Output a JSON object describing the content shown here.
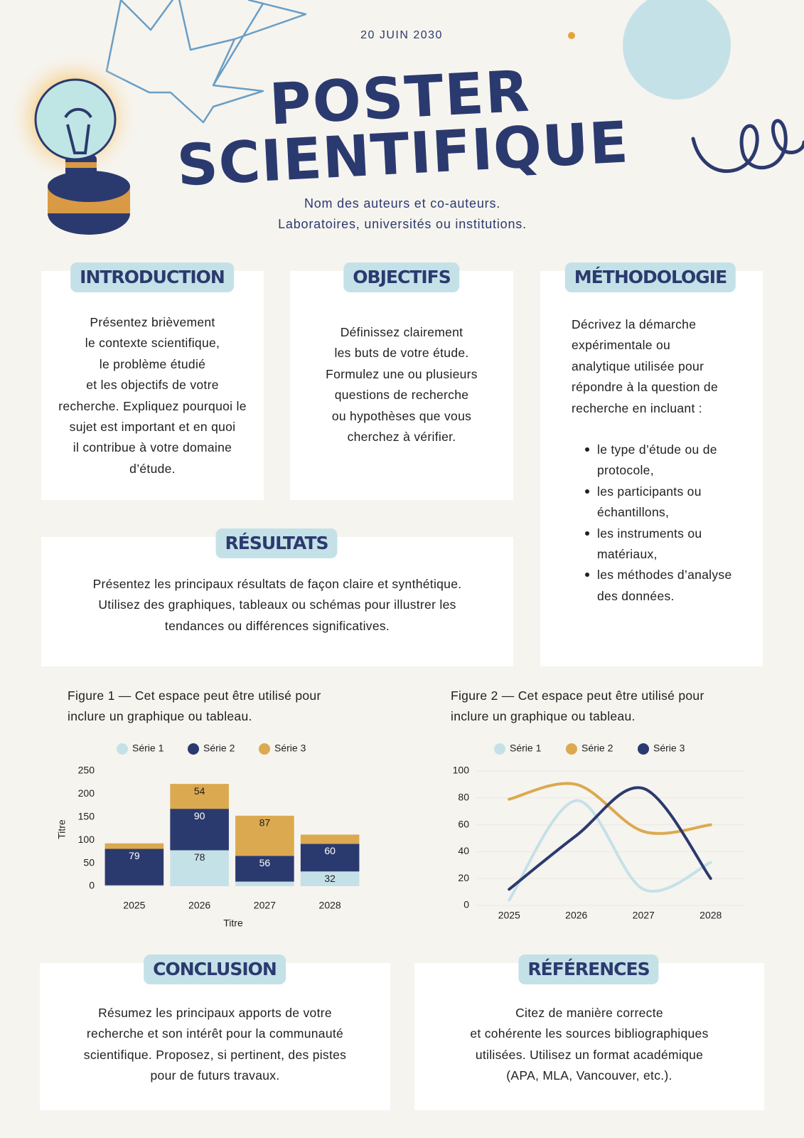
{
  "header": {
    "date": "20 JUIN 2030",
    "title_lines": [
      "POSTER",
      "SCIENTIFIQUE"
    ],
    "authors": [
      "Nom des auteurs et co-auteurs.",
      "Laboratoires, universités ou institutions."
    ]
  },
  "sections": [
    {
      "heading": "INTRODUCTION",
      "lines": [
        "Présentez brièvement",
        "le contexte scientifique,",
        "le problème étudié",
        "et les objectifs de votre",
        "recherche. Expliquez pourquoi le",
        "sujet est important et en quoi",
        "il contribue à votre domaine",
        "d’étude."
      ]
    },
    {
      "heading": "OBJECTIFS",
      "lines": [
        "Définissez clairement",
        "les buts de votre étude.",
        "Formulez une ou plusieurs",
        "questions de recherche",
        "ou hypothèses que vous",
        "cherchez à vérifier."
      ]
    },
    {
      "heading": "MÉTHODOLOGIE",
      "lines": [
        "Décrivez la démarche",
        "expérimentale ou",
        "analytique utilisée pour",
        "répondre à la question de",
        "recherche en incluant :"
      ],
      "bullets": [
        [
          "le type d’étude ou de",
          "protocole,"
        ],
        [
          "les participants ou",
          "échantillons,"
        ],
        [
          "les instruments ou",
          "matériaux,"
        ],
        [
          "les méthodes d’analyse",
          "des données."
        ]
      ]
    },
    {
      "heading": "RÉSULTATS",
      "lines": [
        "Présentez les principaux résultats de façon claire et synthétique.",
        "Utilisez des graphiques, tableaux ou schémas pour illustrer les",
        "tendances ou différences significatives."
      ]
    },
    {
      "heading": "CONCLUSION",
      "lines": [
        "Résumez les principaux apports de votre",
        "recherche et son intérêt pour la communauté",
        "scientifique. Proposez, si pertinent, des pistes",
        "pour de futurs travaux."
      ]
    },
    {
      "heading": "RÉFÉRENCES",
      "lines": [
        "Citez de manière correcte",
        "et cohérente les sources bibliographiques",
        "utilisées. Utilisez un format académique",
        "(APA, MLA, Vancouver, etc.)."
      ]
    }
  ],
  "figures": [
    {
      "caption_lines": [
        "Figure 1 — Cet espace peut être utilisé pour",
        "inclure un graphique ou tableau."
      ],
      "chart": {
        "type": "bar",
        "stacked": true,
        "data_labels": true,
        "grid": false,
        "categories": [
          "2025",
          "2026",
          "2027",
          "2028"
        ],
        "series": [
          {
            "name": "Série 1",
            "color": "#c5e1e8",
            "values": [
              2,
              78,
              10,
              32
            ]
          },
          {
            "name": "Série 2",
            "color": "#2b3a6e",
            "values": [
              79,
              90,
              56,
              60
            ]
          },
          {
            "name": "Série 3",
            "color": "#dba94f",
            "values": [
              12,
              54,
              87,
              20
            ]
          }
        ],
        "ylim": [
          0,
          250
        ],
        "yticks": [
          0,
          50,
          100,
          150,
          200,
          250
        ],
        "x_label": "Titre",
        "y_label": "Titre"
      }
    },
    {
      "caption_lines": [
        "Figure 2 — Cet espace peut être utilisé pour",
        "inclure un graphique ou tableau."
      ],
      "chart": {
        "type": "line",
        "smooth": true,
        "grid": true,
        "categories": [
          "2025",
          "2026",
          "2027",
          "2028"
        ],
        "series": [
          {
            "name": "Série 1",
            "color": "#c5e1e8",
            "values": [
              4,
              78,
              12,
              32
            ]
          },
          {
            "name": "Série 2",
            "color": "#dba94f",
            "values": [
              79,
              90,
              55,
              60
            ]
          },
          {
            "name": "Série 3",
            "color": "#2b3a6e",
            "values": [
              12,
              52,
              87,
              20
            ]
          }
        ],
        "ylim": [
          0,
          100
        ],
        "yticks": [
          0,
          20,
          40,
          60,
          80,
          100
        ]
      }
    }
  ]
}
